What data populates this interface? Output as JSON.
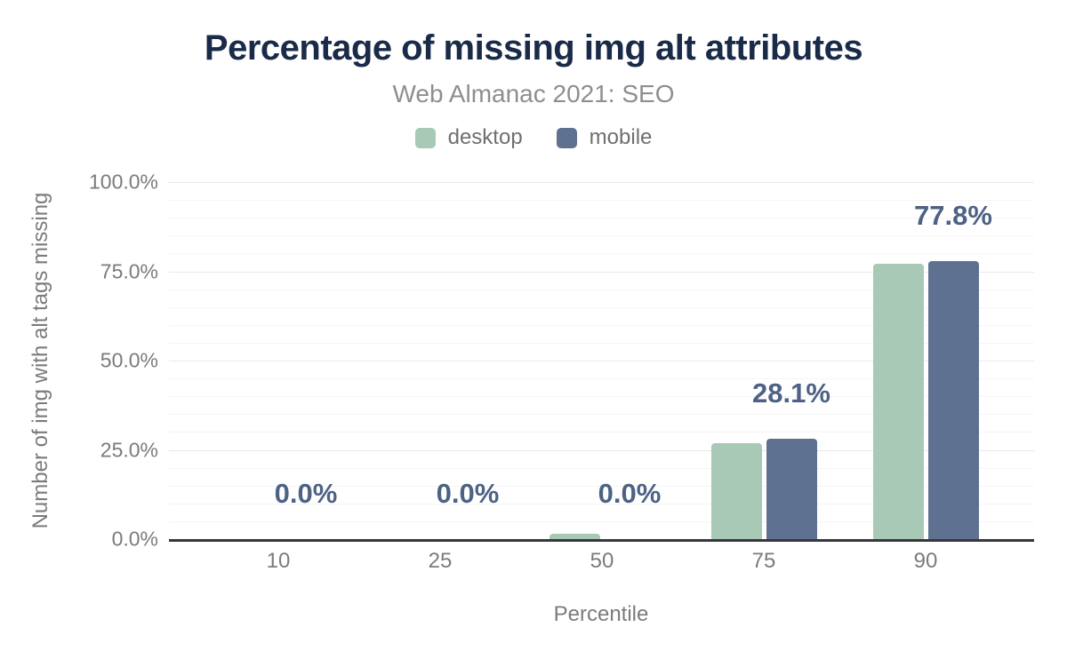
{
  "header": {
    "title": "Percentage of missing img alt attributes",
    "subtitle": "Web Almanac 2021: SEO"
  },
  "legend": {
    "items": [
      {
        "label": "desktop",
        "color": "#a7c9b6"
      },
      {
        "label": "mobile",
        "color": "#5f7190"
      }
    ]
  },
  "chart_data": {
    "type": "bar",
    "title": "Percentage of missing img alt attributes",
    "subtitle": "Web Almanac 2021: SEO",
    "categories": [
      "10",
      "25",
      "50",
      "75",
      "90"
    ],
    "series": [
      {
        "name": "desktop",
        "color": "#a7c9b6",
        "values": [
          0,
          0,
          1.5,
          26.9,
          77.2
        ]
      },
      {
        "name": "mobile",
        "color": "#5f7190",
        "values": [
          0,
          0,
          0,
          28.1,
          77.8
        ]
      }
    ],
    "data_labels": {
      "series": "mobile",
      "values": [
        "0.0%",
        "0.0%",
        "0.0%",
        "28.1%",
        "77.8%"
      ],
      "color": "#4d6285"
    },
    "xlabel": "Percentile",
    "ylabel": "Number of img with alt tags missing",
    "ylim": [
      0,
      100
    ],
    "yticks": [
      {
        "value": 0,
        "label": "0.0%"
      },
      {
        "value": 25,
        "label": "25.0%"
      },
      {
        "value": 50,
        "label": "50.0%"
      },
      {
        "value": 75,
        "label": "75.0%"
      },
      {
        "value": 100,
        "label": "100.0%"
      }
    ],
    "grid": {
      "major_step": 25,
      "minor_step": 5,
      "legend_position": "top"
    }
  },
  "colors": {
    "title": "#1a2b49",
    "subtitle": "#8e8e8e",
    "tick_text": "#7b7b7b",
    "axis_line": "#38383c",
    "grid_major": "#e9e9e9",
    "grid_minor": "#f5f5f5"
  }
}
